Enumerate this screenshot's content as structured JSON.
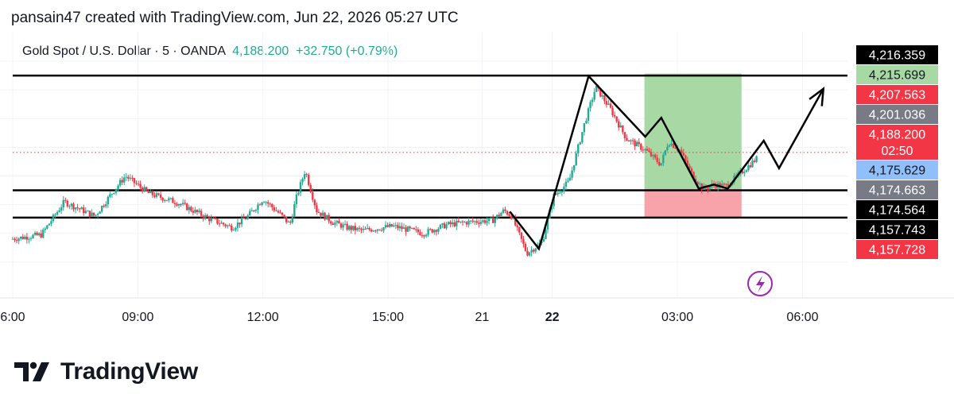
{
  "header": {
    "text": "pansain47 created with TradingView.com, Jun 22, 2026 05:27 UTC"
  },
  "legend": {
    "symbol": "Gold Spot / U.S. Dollar · 5 · OANDA",
    "price": "4,188.200",
    "change": "+32.750 (+0.79%)"
  },
  "brand": {
    "name": "TradingView",
    "icon": "tradingview-logo-icon"
  },
  "colors": {
    "up": "#22ab94",
    "down": "#f23645",
    "line": "#000000",
    "profit_zone": "#a8d9a4",
    "loss_zone": "#f7a3a9",
    "grid": "#f0f3fa",
    "current_price_line": "#f23645",
    "flash_icon": "#9c27b0"
  },
  "chart_data": {
    "type": "candlestick",
    "instrument": "Gold Spot / U.S. Dollar",
    "timeframe": "5",
    "source": "OANDA",
    "x_ticks": [
      {
        "label": "6:00",
        "pos": 0.0,
        "bold": false
      },
      {
        "label": "09:00",
        "pos": 0.1636,
        "bold": false
      },
      {
        "label": "12:00",
        "pos": 0.3271,
        "bold": false
      },
      {
        "label": "15:00",
        "pos": 0.4907,
        "bold": false
      },
      {
        "label": "21",
        "pos": 0.6137,
        "bold": false
      },
      {
        "label": "22",
        "pos": 0.7055,
        "bold": true
      },
      {
        "label": "03:00",
        "pos": 0.8691,
        "bold": false
      },
      {
        "label": "06:00",
        "pos": 1.0327,
        "bold": false
      }
    ],
    "ylim": [
      4145.8,
      4221.4
    ],
    "price_labels": [
      {
        "value": 4216.359,
        "label": "4,216.359",
        "bg": "#000000",
        "fg": "#ffffff"
      },
      {
        "value": 4215.699,
        "label": "4,215.699",
        "bg": "#a8d9a4",
        "fg": "#131722"
      },
      {
        "value": 4207.563,
        "label": "4,207.563",
        "bg": "#f23645",
        "fg": "#ffffff"
      },
      {
        "value": 4201.036,
        "label": "4,201.036",
        "bg": "#787b86",
        "fg": "#ffffff"
      },
      {
        "value": 4188.2,
        "label": "4,188.200",
        "sublabel": "02:50",
        "bg": "#f23645",
        "fg": "#ffffff"
      },
      {
        "value": 4175.629,
        "label": "4,175.629",
        "bg": "#90bff9",
        "fg": "#131722"
      },
      {
        "value": 4174.663,
        "label": "4,174.663",
        "bg": "#787b86",
        "fg": "#ffffff"
      },
      {
        "value": 4174.564,
        "label": "4,174.564",
        "bg": "#000000",
        "fg": "#ffffff"
      },
      {
        "value": 4157.743,
        "label": "4,157.743",
        "bg": "#000000",
        "fg": "#ffffff"
      },
      {
        "value": 4157.728,
        "label": "4,157.728",
        "bg": "#f23645",
        "fg": "#ffffff"
      }
    ],
    "horizontal_levels": [
      4215.0,
      4175.0,
      4165.5
    ],
    "current_price": 4188.2,
    "position": {
      "entry": 4175.6,
      "target": 4215.7,
      "stop": 4165.5,
      "t_start": 0.826,
      "t_end": 0.953
    },
    "price_path": [
      [
        0.0,
        4158.0
      ],
      [
        0.04,
        4159.5
      ],
      [
        0.07,
        4171.0
      ],
      [
        0.11,
        4166.0
      ],
      [
        0.135,
        4175.0
      ],
      [
        0.15,
        4180.0
      ],
      [
        0.18,
        4174.0
      ],
      [
        0.22,
        4170.5
      ],
      [
        0.26,
        4165.0
      ],
      [
        0.29,
        4162.0
      ],
      [
        0.31,
        4166.0
      ],
      [
        0.33,
        4172.0
      ],
      [
        0.355,
        4166.0
      ],
      [
        0.365,
        4163.0
      ],
      [
        0.373,
        4172.0
      ],
      [
        0.385,
        4182.0
      ],
      [
        0.4,
        4168.0
      ],
      [
        0.42,
        4164.0
      ],
      [
        0.44,
        4162.0
      ],
      [
        0.46,
        4161.0
      ],
      [
        0.5,
        4162.5
      ],
      [
        0.54,
        4160.0
      ],
      [
        0.57,
        4163.0
      ],
      [
        0.6,
        4164.0
      ],
      [
        0.63,
        4164.5
      ],
      [
        0.645,
        4168.0
      ],
      [
        0.655,
        4166.0
      ],
      [
        0.675,
        4153.0
      ],
      [
        0.695,
        4157.0
      ],
      [
        0.71,
        4173.0
      ],
      [
        0.73,
        4178.0
      ],
      [
        0.75,
        4198.0
      ],
      [
        0.765,
        4211.0
      ],
      [
        0.785,
        4203.0
      ],
      [
        0.805,
        4193.0
      ],
      [
        0.83,
        4189.0
      ],
      [
        0.85,
        4184.0
      ],
      [
        0.86,
        4192.0
      ],
      [
        0.875,
        4189.0
      ],
      [
        0.89,
        4181.0
      ],
      [
        0.905,
        4175.5
      ],
      [
        0.92,
        4177.0
      ],
      [
        0.935,
        4176.5
      ],
      [
        0.95,
        4180.0
      ],
      [
        0.975,
        4186.0
      ]
    ],
    "drawing": [
      [
        0.65,
        4167.6
      ],
      [
        0.688,
        4154.6
      ],
      [
        0.753,
        4214.8
      ],
      [
        0.827,
        4193.7
      ],
      [
        0.848,
        4200.3
      ],
      [
        0.897,
        4175.6
      ],
      [
        0.917,
        4177.0
      ],
      [
        0.935,
        4175.6
      ],
      [
        0.982,
        4192.3
      ],
      [
        1.002,
        4182.7
      ],
      [
        1.06,
        4210.4
      ]
    ]
  }
}
